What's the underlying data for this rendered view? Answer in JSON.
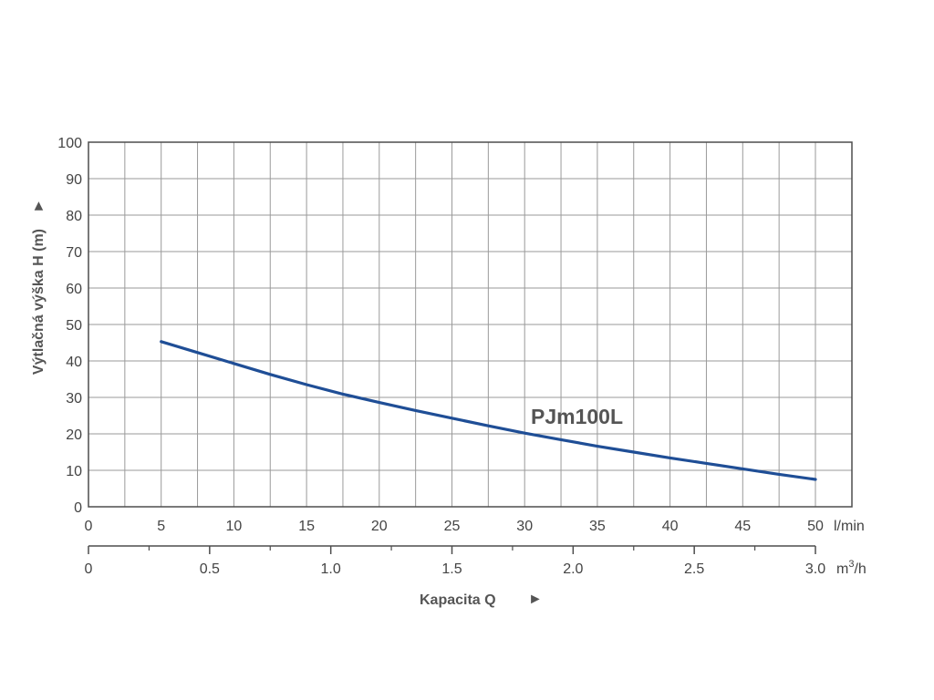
{
  "chart_data": {
    "type": "line",
    "ylabel": "Výtlačná výška H (m)",
    "xlabel": "Kapacita Q",
    "arrow_glyph": "►",
    "ylim": [
      0,
      100
    ],
    "y_ticks": [
      "0",
      "10",
      "20",
      "30",
      "40",
      "50",
      "60",
      "70",
      "80",
      "90",
      "100"
    ],
    "xlim": [
      0,
      50
    ],
    "x_ticks": [
      "0",
      "5",
      "10",
      "15",
      "20",
      "25",
      "30",
      "35",
      "40",
      "45",
      "50"
    ],
    "x_unit": "l/min",
    "x2_ticks": [
      "0",
      "0.5",
      "1.0",
      "1.5",
      "2.0",
      "2.5",
      "3.0"
    ],
    "x2_unit_base": "m",
    "x2_unit_sup": "3",
    "x2_unit_tail": "/h",
    "grid": true,
    "series": [
      {
        "name": "PJm100L",
        "color": "#1f4e96",
        "x": [
          5,
          7.5,
          10,
          12.5,
          15,
          17.5,
          20,
          22.5,
          25,
          27.5,
          30,
          32.5,
          35,
          37.5,
          40,
          42.5,
          45,
          47.5,
          50
        ],
        "y": [
          45.3,
          42.3,
          39.3,
          36.3,
          33.5,
          30.9,
          28.6,
          26.4,
          24.3,
          22.2,
          20.2,
          18.4,
          16.6,
          15.0,
          13.4,
          11.9,
          10.4,
          8.9,
          7.5
        ]
      }
    ]
  }
}
